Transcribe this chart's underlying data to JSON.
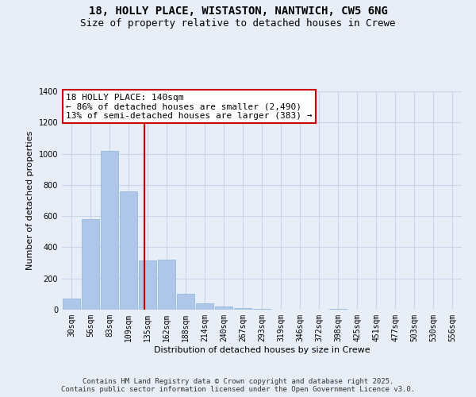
{
  "title_line1": "18, HOLLY PLACE, WISTASTON, NANTWICH, CW5 6NG",
  "title_line2": "Size of property relative to detached houses in Crewe",
  "xlabel": "Distribution of detached houses by size in Crewe",
  "ylabel": "Number of detached properties",
  "bar_color": "#aec6e8",
  "bar_edge_color": "#8ab4d8",
  "background_color": "#e8eef8",
  "grid_color": "#c8d4e8",
  "categories": [
    "30sqm",
    "56sqm",
    "83sqm",
    "109sqm",
    "135sqm",
    "162sqm",
    "188sqm",
    "214sqm",
    "240sqm",
    "267sqm",
    "293sqm",
    "319sqm",
    "346sqm",
    "372sqm",
    "398sqm",
    "425sqm",
    "451sqm",
    "477sqm",
    "503sqm",
    "530sqm",
    "556sqm"
  ],
  "values": [
    70,
    580,
    1020,
    760,
    315,
    320,
    100,
    40,
    20,
    10,
    5,
    0,
    0,
    0,
    5,
    0,
    0,
    0,
    0,
    0,
    0
  ],
  "ylim": [
    0,
    1400
  ],
  "yticks": [
    0,
    200,
    400,
    600,
    800,
    1000,
    1200,
    1400
  ],
  "property_line_x": 3.85,
  "annotation_title": "18 HOLLY PLACE: 140sqm",
  "annotation_line1": "← 86% of detached houses are smaller (2,490)",
  "annotation_line2": "13% of semi-detached houses are larger (383) →",
  "annotation_box_color": "#ffffff",
  "annotation_box_edge": "#cc0000",
  "red_line_color": "#cc0000",
  "footer_line1": "Contains HM Land Registry data © Crown copyright and database right 2025.",
  "footer_line2": "Contains public sector information licensed under the Open Government Licence v3.0.",
  "title_fontsize": 10,
  "subtitle_fontsize": 9,
  "axis_label_fontsize": 8,
  "tick_fontsize": 7,
  "annotation_fontsize": 8,
  "footer_fontsize": 6.5
}
